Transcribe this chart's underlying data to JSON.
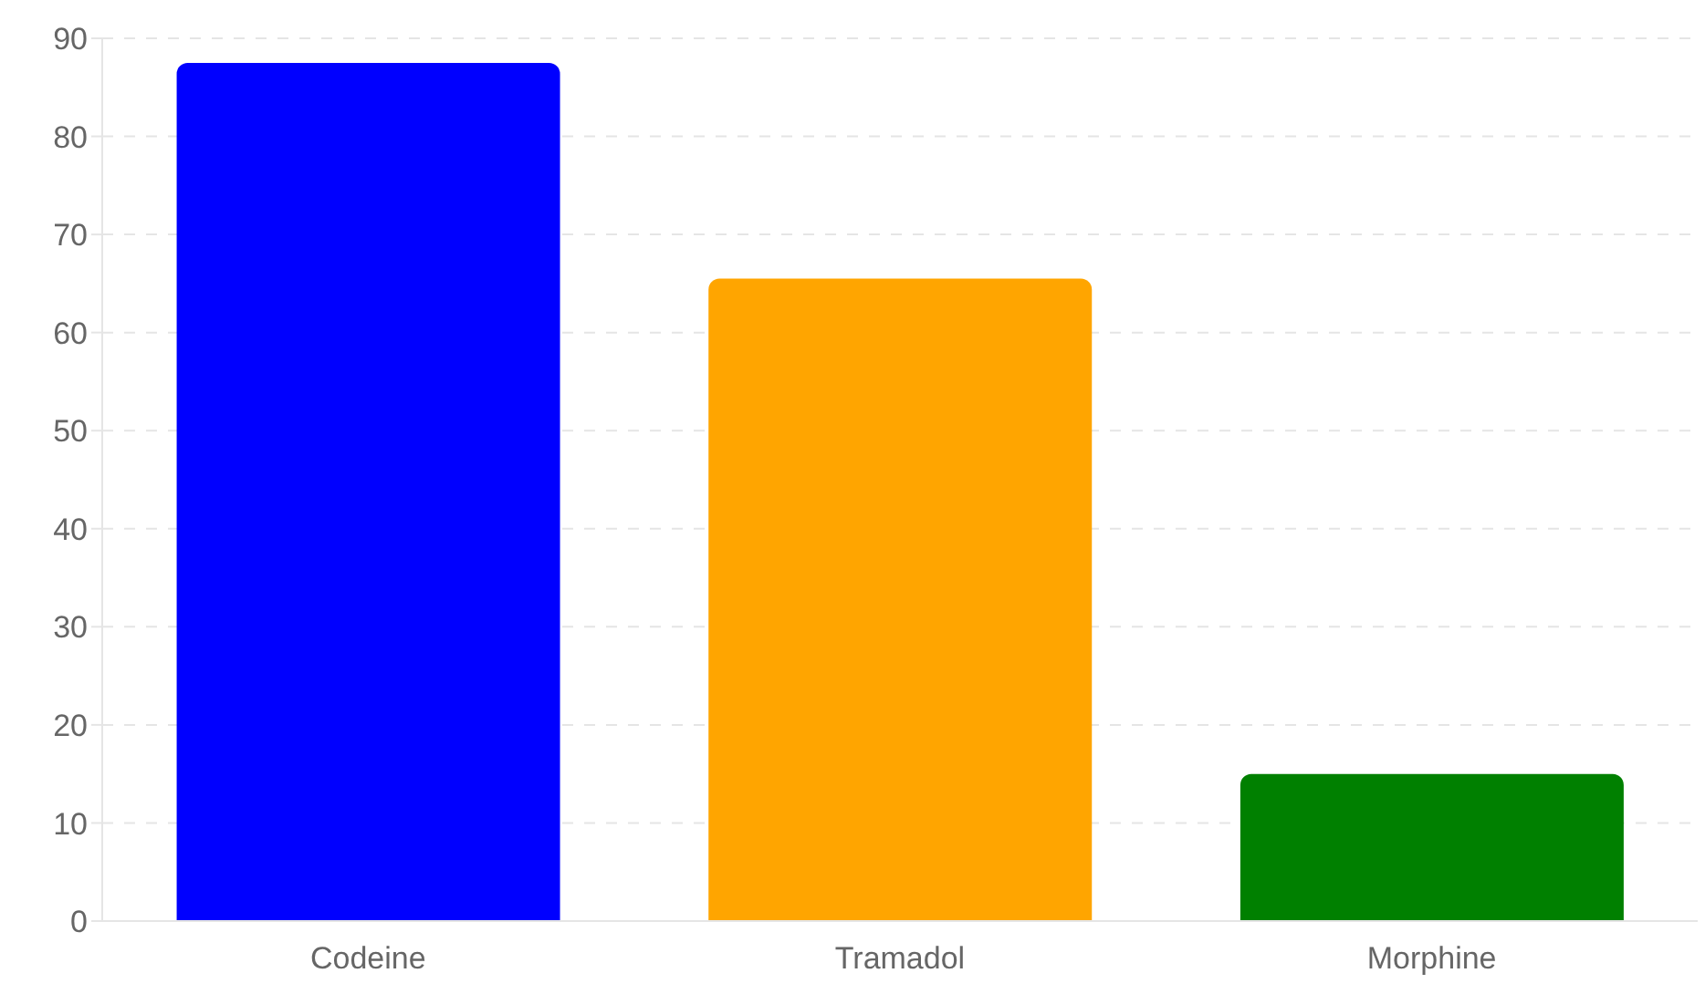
{
  "chart_data": {
    "type": "bar",
    "categories": [
      "Codeine",
      "Tramadol",
      "Morphine"
    ],
    "values": [
      87.5,
      65.5,
      15
    ],
    "colors": [
      "#0000ff",
      "#ffa500",
      "#008000"
    ],
    "ylim": [
      0,
      90
    ],
    "yticks": [
      0,
      10,
      20,
      30,
      40,
      50,
      60,
      70,
      80,
      90
    ],
    "grid": "y"
  }
}
